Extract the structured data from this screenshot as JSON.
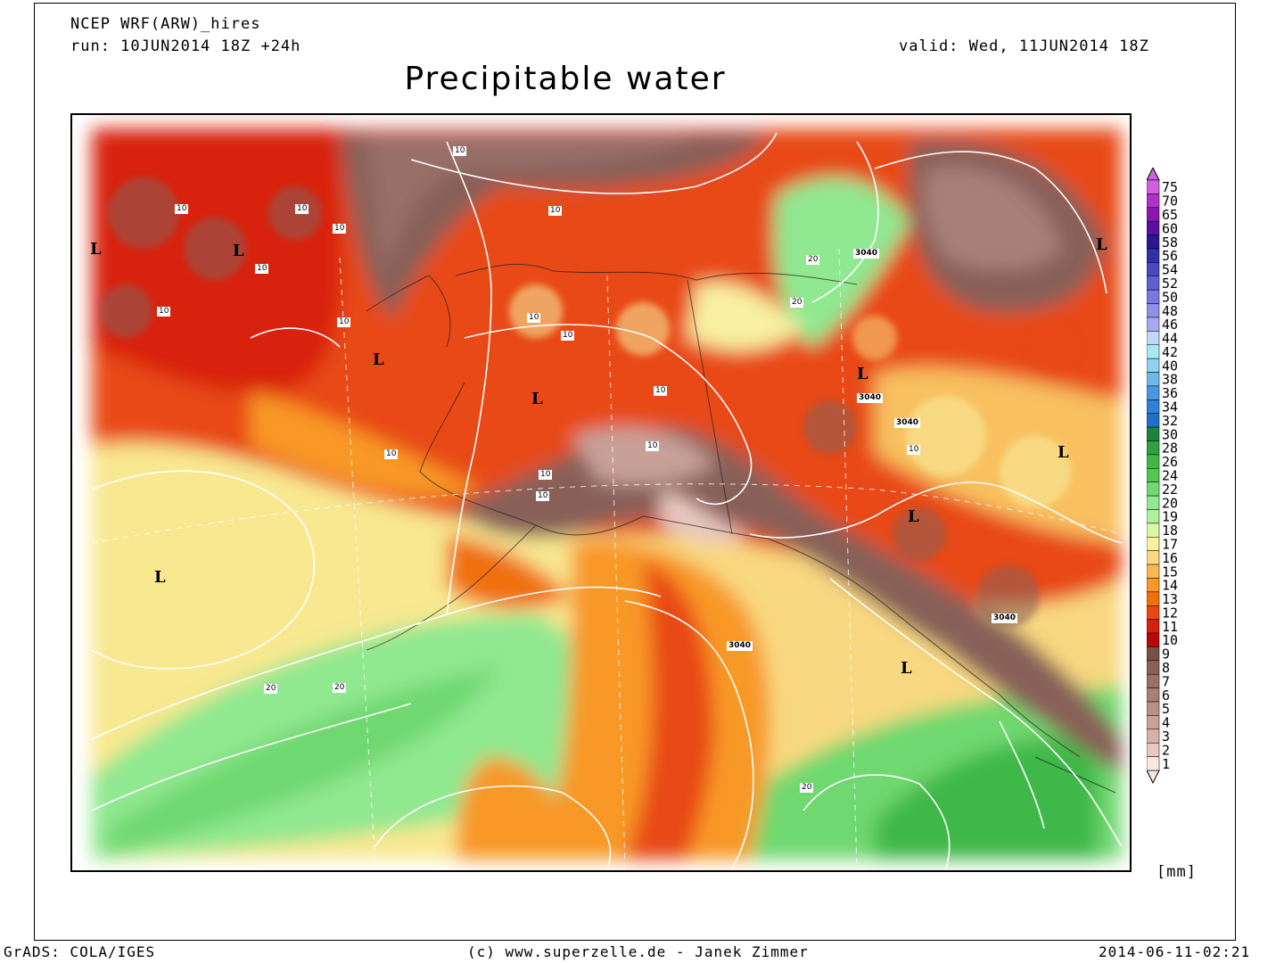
{
  "header": {
    "model": "NCEP WRF(ARW)_hires",
    "run": "run: 10JUN2014 18Z +24h",
    "valid": "valid: Wed, 11JUN2014 18Z",
    "title": "Precipitable water"
  },
  "footer": {
    "left": "GrADS: COLA/IGES",
    "center": "(c) www.superzelle.de - Janek Zimmer",
    "right": "2014-06-11-02:21"
  },
  "legend": {
    "unit": "[mm]",
    "levels": [
      "75",
      "70",
      "65",
      "60",
      "58",
      "56",
      "54",
      "52",
      "50",
      "48",
      "46",
      "44",
      "42",
      "40",
      "38",
      "36",
      "34",
      "32",
      "30",
      "28",
      "26",
      "24",
      "22",
      "20",
      "19",
      "18",
      "17",
      "16",
      "15",
      "14",
      "13",
      "12",
      "11",
      "10",
      "9",
      "8",
      "7",
      "6",
      "5",
      "4",
      "3",
      "2",
      "1"
    ],
    "colors": [
      "#d060e0",
      "#b030c8",
      "#8a18b0",
      "#5a10a0",
      "#2a1890",
      "#3030a8",
      "#4848c0",
      "#5c60d0",
      "#7878e0",
      "#9090e8",
      "#a8a8f0",
      "#c0d8f8",
      "#a8e8f0",
      "#90d0f0",
      "#70b8e8",
      "#4898e0",
      "#3080d8",
      "#2070c8",
      "#208040",
      "#30a040",
      "#40b848",
      "#50c850",
      "#70d870",
      "#90e890",
      "#b0f0a0",
      "#d8f8a8",
      "#f8f0a0",
      "#f8d880",
      "#f8b850",
      "#f89828",
      "#f07010",
      "#e84818",
      "#d82010",
      "#b80808",
      "#785048",
      "#886058",
      "#987068",
      "#a88078",
      "#b89088",
      "#c8a098",
      "#d8b0a8",
      "#e8c8c0",
      "#f8e8e0"
    ]
  },
  "map": {
    "low_marker": "L",
    "contour_labels": [
      "10",
      "10",
      "10",
      "10",
      "10",
      "10",
      "10",
      "10",
      "10",
      "10",
      "10",
      "10",
      "10",
      "10",
      "10",
      "10",
      "20",
      "20",
      "20",
      "20",
      "20",
      "3040",
      "3040",
      "3040",
      "3040",
      "3040"
    ]
  }
}
